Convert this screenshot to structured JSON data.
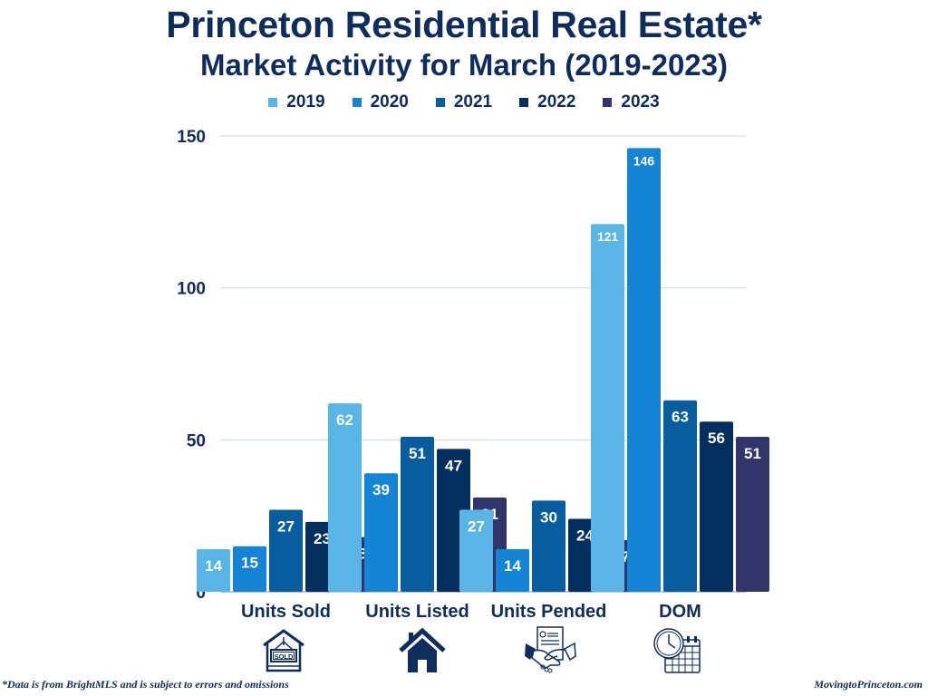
{
  "title": "Princeton Residential Real Estate*",
  "subtitle": "Market Activity for March (2019-2023)",
  "footer": {
    "disclaimer": "*Data is from BrightMLS and is subject to errors and omissions",
    "site": "MovingtoPrinceton.com"
  },
  "icons": [
    "sold-sign-house-icon",
    "house-icon",
    "handshake-contract-icon",
    "clock-calendar-icon"
  ],
  "chart_data": {
    "type": "bar",
    "title": "Princeton Residential Real Estate* Market Activity for March (2019-2023)",
    "xlabel": "",
    "ylabel": "",
    "ylim": [
      0,
      150
    ],
    "yticks": [
      0,
      50,
      100,
      150
    ],
    "grid": true,
    "legend_position": "top-center",
    "categories": [
      "Units Sold",
      "Units Listed",
      "Units Pended",
      "DOM"
    ],
    "series": [
      {
        "name": "2019",
        "color": "#58b5e6",
        "values": [
          14,
          62,
          27,
          121
        ]
      },
      {
        "name": "2020",
        "color": "#1485d4",
        "values": [
          15,
          39,
          14,
          146
        ]
      },
      {
        "name": "2021",
        "color": "#075d9e",
        "values": [
          27,
          51,
          30,
          63
        ]
      },
      {
        "name": "2022",
        "color": "#022f5d",
        "values": [
          23,
          47,
          24,
          56
        ]
      },
      {
        "name": "2023",
        "color": "#32356a",
        "values": [
          18,
          31,
          17,
          51
        ]
      }
    ]
  }
}
